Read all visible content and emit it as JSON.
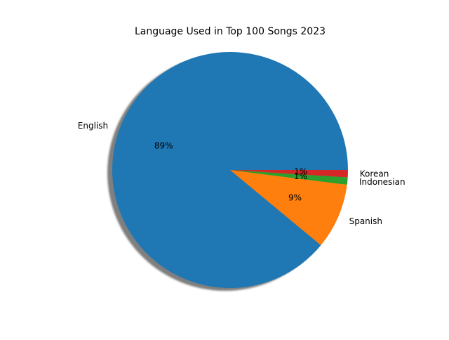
{
  "chart_data": {
    "type": "pie",
    "title": "Language Used in Top 100 Songs 2023",
    "categories": [
      "English",
      "Spanish",
      "Indonesian",
      "Korean"
    ],
    "values": [
      89,
      9,
      1,
      1
    ],
    "percent_labels": [
      "89%",
      "9%",
      "1%",
      "1%"
    ],
    "colors": [
      "#1f77b4",
      "#ff7f0e",
      "#2ca02c",
      "#d62728"
    ],
    "start_angle_deg": 0,
    "direction": "counterclockwise",
    "shadow": true,
    "legend": "none"
  }
}
